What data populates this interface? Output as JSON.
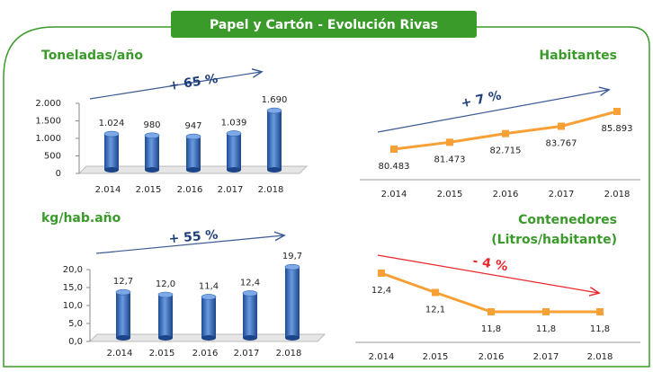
{
  "title": "Papel y Cartón - Evolución Rivas",
  "chart_data": [
    {
      "type": "bar",
      "title": "Toneladas/año",
      "annotation": "+ 65 %",
      "categories": [
        "2.014",
        "2.015",
        "2.016",
        "2.017",
        "2.018"
      ],
      "values": [
        1024,
        980,
        947,
        1039,
        1690
      ],
      "value_labels": [
        "1.024",
        "980",
        "947",
        "1.039",
        "1.690"
      ],
      "color": "#2f67b8",
      "ylim": [
        0,
        2000
      ],
      "yticks": [
        0,
        500,
        {
          "value": 1000,
          "label": "1.000"
        },
        {
          "value": 1500,
          "label": "1.500"
        },
        {
          "value": 2000,
          "label": "2.000"
        }
      ]
    },
    {
      "type": "line",
      "title": "Habitantes",
      "annotation": "+ 7 %",
      "categories": [
        "2.014",
        "2.015",
        "2.016",
        "2.017",
        "2.018"
      ],
      "values": [
        80483,
        81473,
        82715,
        83767,
        85893
      ],
      "value_labels": [
        "80.483",
        "81.473",
        "82.715",
        "83.767",
        "85.893"
      ],
      "color": "#f7a035"
    },
    {
      "type": "bar",
      "title": "kg/hab.año",
      "annotation": "+ 55 %",
      "categories": [
        "2.014",
        "2.015",
        "2.016",
        "2.017",
        "2.018"
      ],
      "values": [
        12.7,
        12.0,
        11.4,
        12.4,
        19.7
      ],
      "value_labels": [
        "12,7",
        "12,0",
        "11,4",
        "12,4",
        "19,7"
      ],
      "color": "#2f67b8",
      "ylim": [
        0,
        20
      ],
      "yticks": [
        {
          "value": 0,
          "label": "0,0"
        },
        {
          "value": 5,
          "label": "5,0"
        },
        {
          "value": 10,
          "label": "10,0"
        },
        {
          "value": 15,
          "label": "15,0"
        },
        {
          "value": 20,
          "label": "20,0"
        }
      ]
    },
    {
      "type": "line",
      "title": [
        "Contenedores",
        "(Litros/habitante)"
      ],
      "annotation": "- 4 %",
      "categories": [
        "2.014",
        "2.015",
        "2.016",
        "2.017",
        "2.018"
      ],
      "values": [
        12.4,
        12.1,
        11.8,
        11.8,
        11.8
      ],
      "value_labels": [
        "12,4",
        "12,1",
        "11,8",
        "11,8",
        "11,8"
      ],
      "color": "#f7a035"
    }
  ]
}
